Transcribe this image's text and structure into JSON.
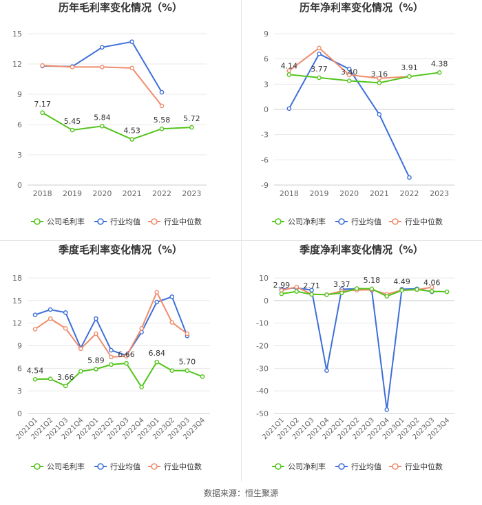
{
  "source_text": "数据来源：恒生聚源",
  "colors": {
    "company": "#52c41a",
    "industry_avg": "#3d6fd9",
    "industry_median": "#f08c6b",
    "grid": "#e8e8e8",
    "axis_text": "#666666"
  },
  "chart_data": [
    {
      "id": "annual-gross",
      "type": "line",
      "title": "历年毛利率变化情况（%）",
      "categories": [
        "2018",
        "2019",
        "2020",
        "2021",
        "2022",
        "2023"
      ],
      "ylim": [
        0,
        15
      ],
      "yticks": [
        0,
        3,
        6,
        9,
        12,
        15
      ],
      "ytick_labels": [
        "0",
        "3",
        "6",
        "9",
        "12",
        "15"
      ],
      "grid": true,
      "legend_position": "bottom",
      "series": [
        {
          "name": "公司毛利率",
          "color_key": "company",
          "values": [
            7.17,
            5.45,
            5.84,
            4.53,
            5.58,
            5.72
          ],
          "labels": [
            "7.17",
            "5.45",
            "5.84",
            "4.53",
            "5.58",
            "5.72"
          ]
        },
        {
          "name": "行业均值",
          "color_key": "industry_avg",
          "values": [
            11.8,
            11.75,
            13.65,
            14.2,
            9.2,
            null
          ]
        },
        {
          "name": "行业中位数",
          "color_key": "industry_median",
          "values": [
            11.85,
            11.7,
            11.7,
            11.6,
            7.85,
            null
          ]
        }
      ]
    },
    {
      "id": "annual-net",
      "type": "line",
      "title": "历年净利率变化情况（%）",
      "categories": [
        "2018",
        "2019",
        "2020",
        "2021",
        "2022",
        "2023"
      ],
      "ylim": [
        -9,
        9
      ],
      "yticks": [
        -9,
        -6,
        -3,
        0,
        3,
        6,
        9
      ],
      "ytick_labels": [
        "-9",
        "-6",
        "-3",
        "0",
        "3",
        "6",
        "9"
      ],
      "grid": true,
      "legend_position": "bottom",
      "series": [
        {
          "name": "公司净利率",
          "color_key": "company",
          "values": [
            4.14,
            3.77,
            3.4,
            3.16,
            3.91,
            4.38
          ],
          "labels": [
            "4.14",
            "3.77",
            "3.40",
            "3.16",
            "3.91",
            "4.38"
          ]
        },
        {
          "name": "行业均值",
          "color_key": "industry_avg",
          "values": [
            0.1,
            6.6,
            4.8,
            -0.6,
            -8.1,
            null
          ]
        },
        {
          "name": "行业中位数",
          "color_key": "industry_median",
          "values": [
            4.6,
            7.3,
            4.1,
            3.7,
            3.9,
            null
          ]
        }
      ]
    },
    {
      "id": "quarterly-gross",
      "type": "line",
      "title": "季度毛利率变化情况（%）",
      "categories": [
        "2021Q1",
        "2021Q2",
        "2021Q3",
        "2021Q4",
        "2022Q1",
        "2022Q2",
        "2022Q3",
        "2022Q4",
        "2023Q1",
        "2023Q2",
        "2023Q3",
        "2023Q4"
      ],
      "ylim": [
        0,
        18
      ],
      "yticks": [
        0,
        3,
        6,
        9,
        12,
        15,
        18
      ],
      "ytick_labels": [
        "0",
        "3",
        "6",
        "9",
        "12",
        "15",
        "18"
      ],
      "grid": true,
      "legend_position": "bottom",
      "series": [
        {
          "name": "公司毛利率",
          "color_key": "company",
          "values": [
            4.54,
            4.6,
            3.66,
            5.6,
            5.89,
            6.5,
            6.66,
            3.5,
            6.84,
            5.7,
            5.7,
            4.9
          ],
          "labels": [
            "4.54",
            "",
            "3.66",
            "",
            "5.89",
            "",
            "6.66",
            "",
            "6.84",
            "",
            "5.70",
            ""
          ]
        },
        {
          "name": "行业均值",
          "color_key": "industry_avg",
          "values": [
            13.1,
            13.8,
            13.4,
            8.7,
            12.6,
            8.4,
            7.7,
            10.8,
            14.8,
            15.5,
            10.3,
            null
          ]
        },
        {
          "name": "行业中位数",
          "color_key": "industry_median",
          "values": [
            11.2,
            12.6,
            11.3,
            8.6,
            10.6,
            7.5,
            7.6,
            11.3,
            16.1,
            12.1,
            10.6,
            null
          ]
        }
      ]
    },
    {
      "id": "quarterly-net",
      "type": "line",
      "title": "季度净利率变化情况（%）",
      "categories": [
        "2021Q1",
        "2021Q2",
        "2021Q3",
        "2021Q4",
        "2022Q1",
        "2022Q2",
        "2022Q3",
        "2022Q4",
        "2023Q1",
        "2023Q2",
        "2023Q3",
        "2023Q4"
      ],
      "ylim": [
        -50,
        10
      ],
      "yticks": [
        -50,
        -40,
        -30,
        -20,
        -10,
        0,
        10
      ],
      "ytick_labels": [
        "-50",
        "-40",
        "-30",
        "-20",
        "-10",
        "0",
        "10"
      ],
      "grid": true,
      "legend_position": "bottom",
      "series": [
        {
          "name": "公司净利率",
          "color_key": "company",
          "values": [
            2.99,
            4.0,
            2.71,
            2.6,
            3.37,
            5.3,
            5.18,
            1.9,
            4.49,
            4.9,
            4.06,
            3.9
          ],
          "labels": [
            "2.99",
            "",
            "2.71",
            "",
            "3.37",
            "",
            "5.18",
            "",
            "4.49",
            "",
            "4.06",
            ""
          ]
        },
        {
          "name": "行业均值",
          "color_key": "industry_avg",
          "values": [
            5.0,
            5.6,
            4.6,
            -31.0,
            5.0,
            5.2,
            4.6,
            -48.3,
            5.0,
            5.2,
            3.9,
            null
          ]
        },
        {
          "name": "行业中位数",
          "color_key": "industry_median",
          "values": [
            4.5,
            6.0,
            2.8,
            2.6,
            4.2,
            4.6,
            4.8,
            2.8,
            4.6,
            4.8,
            5.9,
            null
          ]
        }
      ]
    }
  ]
}
